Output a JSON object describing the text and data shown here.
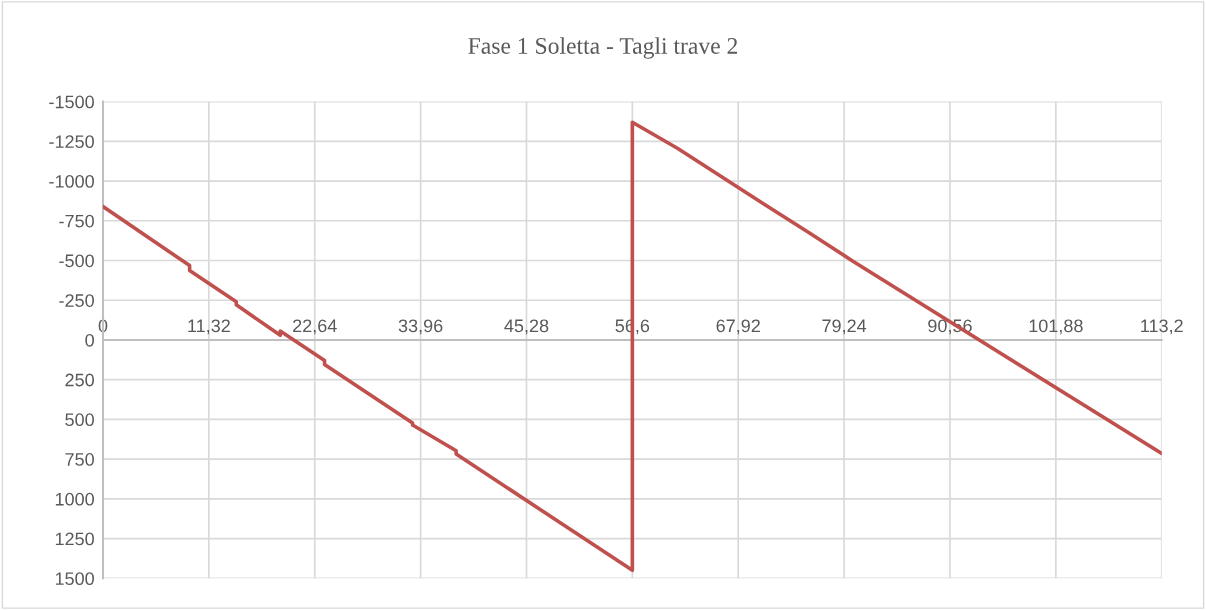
{
  "chart_data": {
    "type": "line",
    "title": "Fase 1 Soletta - Tagli trave 2",
    "series": [
      {
        "color": "#c0504d",
        "x": [
          0,
          9.26,
          9.26,
          14.25,
          14.25,
          18.95,
          18.95,
          23.69,
          23.69,
          33.1,
          33.1,
          37.76,
          37.76,
          56.6,
          56.6,
          61.46,
          70.7,
          75.5,
          80.1,
          113.2
        ],
        "values": [
          -840,
          -468,
          -437,
          -241,
          -221,
          -29,
          -56,
          130,
          155,
          522,
          535,
          697,
          718,
          1450,
          -1370,
          -1205,
          -854,
          -675,
          -499,
          715
        ]
      }
    ],
    "xlim": [
      0,
      113.2
    ],
    "xticks": [
      0,
      {
        "value": 11.32,
        "label": "11,32"
      },
      {
        "value": 22.64,
        "label": "22,64"
      },
      {
        "value": 33.96,
        "label": "33,96"
      },
      {
        "value": 45.28,
        "label": "45,28"
      },
      {
        "value": 56.6,
        "label": "56,6"
      },
      {
        "value": 67.92,
        "label": "67,92"
      },
      {
        "value": 79.24,
        "label": "79,24"
      },
      {
        "value": 90.56,
        "label": "90,56"
      },
      {
        "value": 101.88,
        "label": "101,88"
      },
      {
        "value": 113.2,
        "label": "113,2"
      }
    ],
    "ylim": [
      1500,
      -1500
    ],
    "yticks": [
      -1500,
      -1250,
      -1000,
      -750,
      -500,
      -250,
      0,
      250,
      500,
      750,
      1000,
      1250,
      1500
    ],
    "grid": true,
    "marker": "none",
    "line_style": "solid",
    "legend": false
  }
}
